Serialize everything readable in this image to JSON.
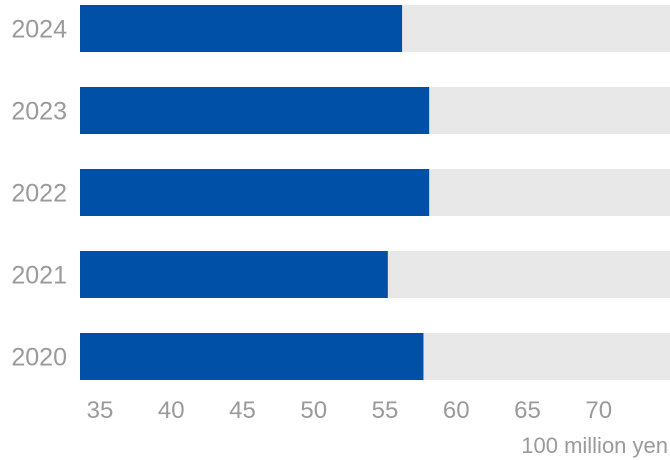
{
  "chart_data": {
    "type": "bar",
    "orientation": "horizontal",
    "categories": [
      "2024",
      "2023",
      "2022",
      "2021",
      "2020"
    ],
    "values": [
      56.2,
      58.1,
      58.1,
      55.2,
      57.7
    ],
    "xlim": [
      33.6,
      75
    ],
    "x_ticks": [
      "35",
      "40",
      "45",
      "50",
      "55",
      "60",
      "65",
      "70"
    ],
    "x_unit_label": "100 million yen",
    "grid": false,
    "colors": {
      "bar": "#0050a8",
      "track": "#e8e8e8",
      "text": "#9a9a9a"
    }
  }
}
